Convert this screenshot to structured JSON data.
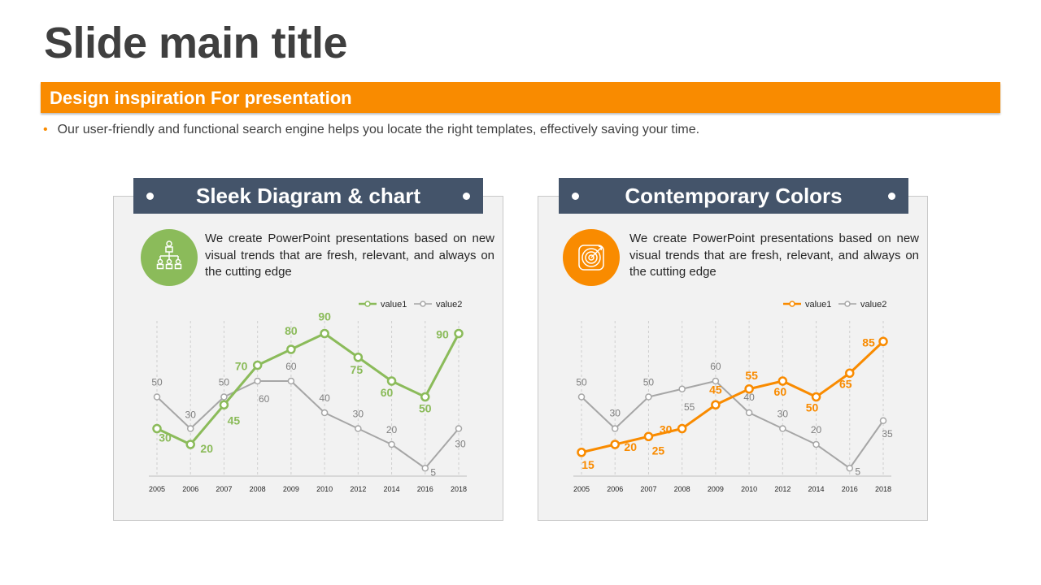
{
  "slide": {
    "title": "Slide main title",
    "subtitle": "Design inspiration For presentation",
    "bullet": "Our user-friendly and functional search engine helps you locate the right templates, effectively saving your time."
  },
  "colors": {
    "accent": "#f98b00",
    "green": "#8bbb5a",
    "gray": "#a6a6a6",
    "header": "#44546a"
  },
  "panels": [
    {
      "title": "Sleek Diagram & chart",
      "description": "We create PowerPoint presentations based on new visual trends that are fresh, relevant, and always on the cutting edge",
      "icon": "team-hierarchy-icon",
      "color": "#8bbb5a"
    },
    {
      "title": "Contemporary Colors",
      "description": "We create PowerPoint presentations based on new visual trends that are fresh, relevant, and always on the cutting edge",
      "icon": "target-icon",
      "color": "#f98b00"
    }
  ],
  "chart_data": [
    {
      "type": "line",
      "categories": [
        "2005",
        "2006",
        "2007",
        "2008",
        "2009",
        "2010",
        "2012",
        "2014",
        "2016",
        "2018"
      ],
      "series": [
        {
          "name": "value1",
          "color": "#8bbb5a",
          "values": [
            30,
            20,
            45,
            70,
            80,
            90,
            75,
            60,
            50,
            90
          ]
        },
        {
          "name": "value2",
          "color": "#a6a6a6",
          "values": [
            50,
            30,
            50,
            60,
            60,
            40,
            30,
            20,
            5,
            30
          ]
        }
      ],
      "ylim": [
        0,
        100
      ],
      "grid": "vertical dashed",
      "legend": "top-right"
    },
    {
      "type": "line",
      "categories": [
        "2005",
        "2006",
        "2007",
        "2008",
        "2009",
        "2010",
        "2012",
        "2014",
        "2016",
        "2018"
      ],
      "series": [
        {
          "name": "value1",
          "color": "#f98b00",
          "values": [
            15,
            20,
            25,
            30,
            45,
            55,
            60,
            50,
            65,
            85
          ]
        },
        {
          "name": "value2",
          "color": "#a6a6a6",
          "values": [
            50,
            30,
            50,
            55,
            60,
            40,
            30,
            20,
            5,
            35
          ]
        }
      ],
      "ylim": [
        0,
        100
      ],
      "grid": "vertical dashed",
      "legend": "top-right"
    }
  ]
}
